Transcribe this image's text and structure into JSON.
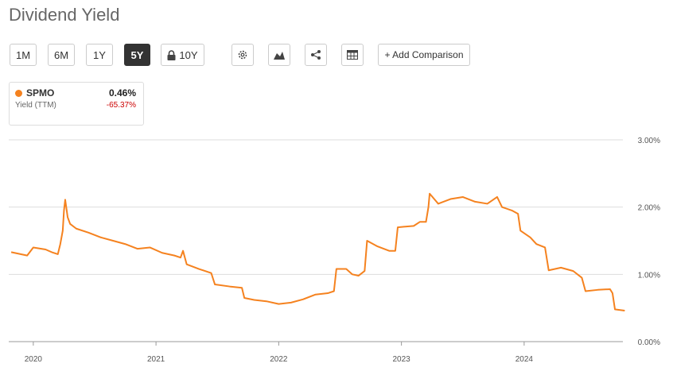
{
  "header": {
    "title": "Dividend Yield"
  },
  "toolbar": {
    "ranges": [
      "1M",
      "6M",
      "1Y",
      "5Y",
      "10Y"
    ],
    "active_range": 3,
    "locked_range": 4,
    "add_comparison": "+ Add Comparison"
  },
  "legend_card": {
    "value": "0.46%",
    "label": "Yield (TTM)",
    "change": "-65.37%"
  },
  "chart_data": {
    "type": "line",
    "x": [
      2019.82,
      2019.95,
      2020.0,
      2020.1,
      2020.15,
      2020.2,
      2020.22,
      2020.24,
      2020.25,
      2020.26,
      2020.28,
      2020.3,
      2020.35,
      2020.45,
      2020.55,
      2020.65,
      2020.75,
      2020.85,
      2020.95,
      2021.05,
      2021.15,
      2021.2,
      2021.22,
      2021.25,
      2021.35,
      2021.45,
      2021.48,
      2021.6,
      2021.7,
      2021.72,
      2021.8,
      2021.9,
      2022.0,
      2022.1,
      2022.2,
      2022.3,
      2022.4,
      2022.45,
      2022.47,
      2022.55,
      2022.6,
      2022.65,
      2022.7,
      2022.72,
      2022.8,
      2022.9,
      2022.95,
      2022.97,
      2023.1,
      2023.15,
      2023.2,
      2023.22,
      2023.23,
      2023.3,
      2023.4,
      2023.5,
      2023.6,
      2023.7,
      2023.78,
      2023.82,
      2023.9,
      2023.95,
      2023.97,
      2024.05,
      2024.1,
      2024.17,
      2024.2,
      2024.3,
      2024.4,
      2024.47,
      2024.5,
      2024.6,
      2024.7,
      2024.72,
      2024.74,
      2024.82
    ],
    "series": [
      {
        "name": "SPMO",
        "color": "#f5821f",
        "values": [
          1.33,
          1.28,
          1.4,
          1.37,
          1.33,
          1.3,
          1.45,
          1.65,
          1.95,
          2.11,
          1.85,
          1.75,
          1.68,
          1.62,
          1.55,
          1.5,
          1.45,
          1.38,
          1.4,
          1.32,
          1.28,
          1.25,
          1.35,
          1.15,
          1.08,
          1.02,
          0.85,
          0.82,
          0.8,
          0.65,
          0.62,
          0.6,
          0.56,
          0.58,
          0.63,
          0.7,
          0.72,
          0.75,
          1.08,
          1.08,
          1.0,
          0.98,
          1.05,
          1.5,
          1.42,
          1.35,
          1.35,
          1.7,
          1.72,
          1.78,
          1.78,
          2.0,
          2.2,
          2.05,
          2.12,
          2.15,
          2.08,
          2.05,
          2.15,
          2.0,
          1.95,
          1.9,
          1.65,
          1.55,
          1.45,
          1.4,
          1.06,
          1.1,
          1.05,
          0.95,
          0.75,
          0.77,
          0.78,
          0.72,
          0.48,
          0.46
        ]
      }
    ],
    "xlim": [
      2019.8,
      2024.85
    ],
    "xticks": [
      2020,
      2021,
      2022,
      2023,
      2024
    ],
    "ylim": [
      0,
      3
    ],
    "yticks": [
      {
        "value": 0,
        "label": "0.00%"
      },
      {
        "value": 1,
        "label": "1.00%"
      },
      {
        "value": 2,
        "label": "2.00%"
      },
      {
        "value": 3,
        "label": "3.00%"
      }
    ],
    "grid": true
  }
}
